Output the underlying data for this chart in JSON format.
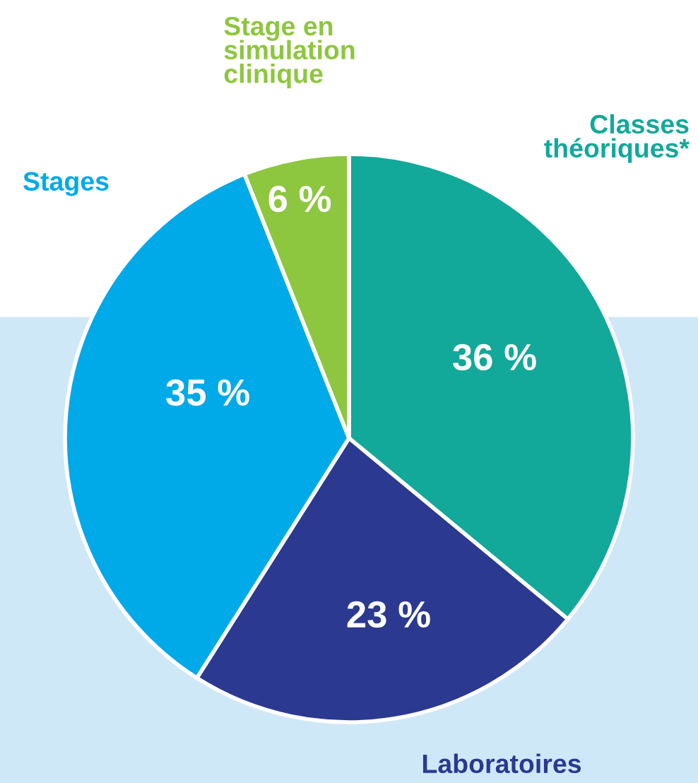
{
  "chart_data": {
    "type": "pie",
    "categories": [
      "Classes théoriques*",
      "Laboratoires",
      "Stages",
      "Stage en simulation clinique"
    ],
    "values": [
      36,
      23,
      35,
      6
    ],
    "colors": [
      "#12a89a",
      "#2b3990",
      "#00a9e8",
      "#8dc63f"
    ],
    "value_labels": [
      "36 %",
      "23 %",
      "35 %",
      "6 %"
    ]
  }
}
